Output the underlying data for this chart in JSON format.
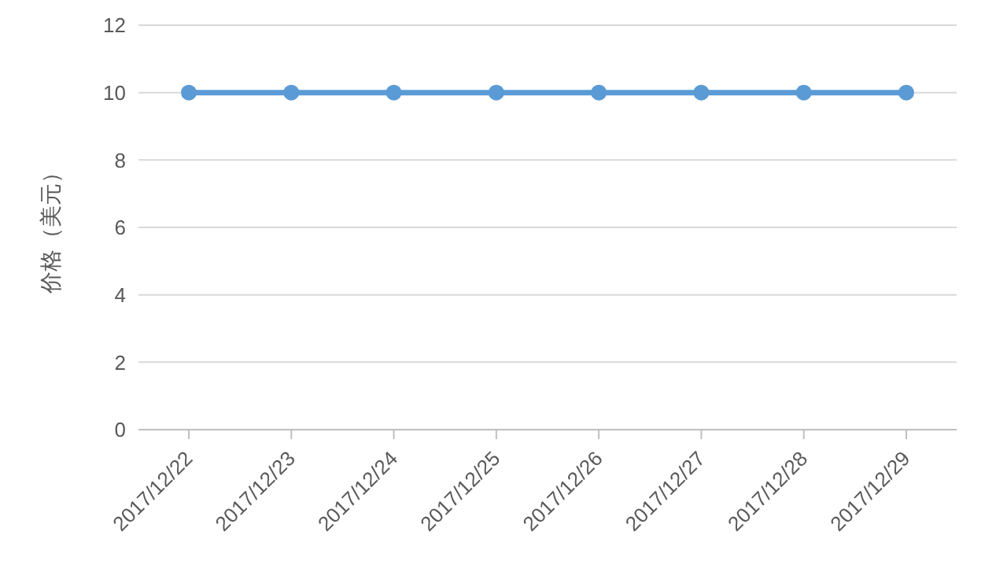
{
  "chart_data": {
    "type": "line",
    "ylabel": "价格（美元）",
    "categories": [
      "2017/12/22",
      "2017/12/23",
      "2017/12/24",
      "2017/12/25",
      "2017/12/26",
      "2017/12/27",
      "2017/12/28",
      "2017/12/29"
    ],
    "series": [
      {
        "color": "#5b9bd5",
        "values": [
          10,
          10,
          10,
          10,
          10,
          10,
          10,
          10
        ]
      }
    ],
    "ylim": [
      0,
      12
    ],
    "yticks": [
      0,
      2,
      4,
      6,
      8,
      10,
      12
    ],
    "grid": "y",
    "marker": "circle",
    "line_style": "solid",
    "legend": false
  }
}
